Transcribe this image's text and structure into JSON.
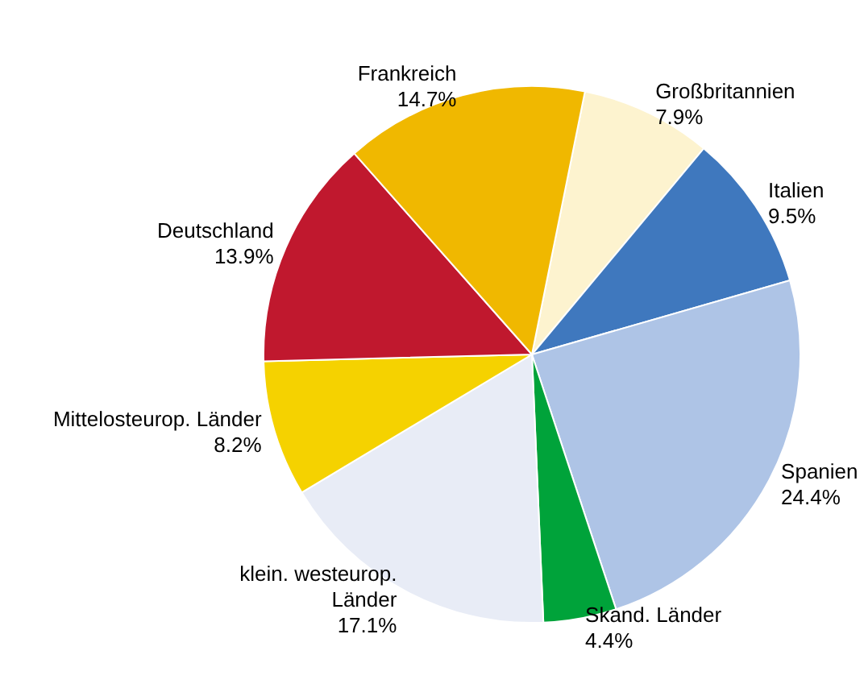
{
  "chart_data": {
    "type": "pie",
    "categories": [
      "Großbritannien",
      "Italien",
      "Spanien",
      "Skand. Länder",
      "klein. westeurop. Länder",
      "Mittelosteurop. Länder",
      "Deutschland",
      "Frankreich"
    ],
    "values": [
      7.9,
      9.5,
      24.4,
      4.4,
      17.1,
      8.2,
      13.9,
      14.7
    ],
    "value_labels": [
      "7.9%",
      "9.5%",
      "24.4%",
      "4.4%",
      "17.1%",
      "8.2%",
      "13.9%",
      "14.7%"
    ],
    "colors": [
      "#fdf3cf",
      "#3f78be",
      "#aec4e6",
      "#00a33a",
      "#e8ecf6",
      "#f5d200",
      "#c0182e",
      "#f0b800"
    ],
    "legend": false
  }
}
